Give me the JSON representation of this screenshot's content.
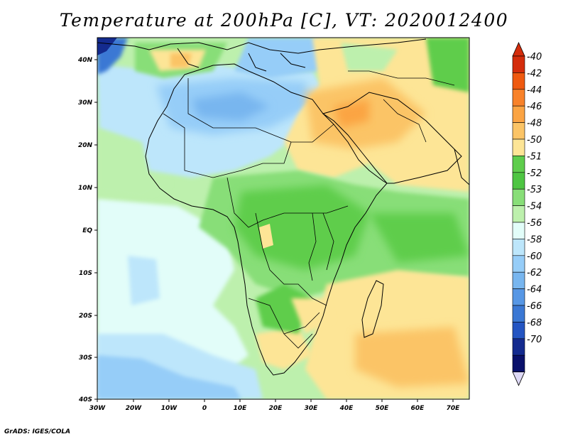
{
  "title": "Temperature at 200hPa [C], VT: 2020012400",
  "credit": "GrADS: IGES/COLA",
  "axes": {
    "lat_labels": [
      "40N",
      "30N",
      "20N",
      "10N",
      "EQ",
      "10S",
      "20S",
      "30S",
      "40S"
    ],
    "lon_labels": [
      "30W",
      "20W",
      "10W",
      "0",
      "10E",
      "20E",
      "30E",
      "40E",
      "50E",
      "60E",
      "70E"
    ]
  },
  "colorbar": {
    "levels": [
      "-40",
      "-42",
      "-44",
      "-46",
      "-48",
      "-50",
      "-51",
      "-52",
      "-53",
      "-54",
      "-56",
      "-58",
      "-60",
      "-62",
      "-64",
      "-66",
      "-68",
      "-70"
    ],
    "colors": [
      "#d42d0c",
      "#ef5a10",
      "#f8822a",
      "#fba443",
      "#fbc466",
      "#fde596",
      "#5ecd4c",
      "#4ec542",
      "#88de78",
      "#bdf0ad",
      "#e2fdf9",
      "#bde6fb",
      "#96cdf8",
      "#78b6ef",
      "#5797e5",
      "#3b78d4",
      "#2455c2",
      "#142b8f",
      "#0a116b"
    ],
    "top_arrow_color": "#d42d0c",
    "bottom_arrow_color": "#ddd8f5"
  }
}
